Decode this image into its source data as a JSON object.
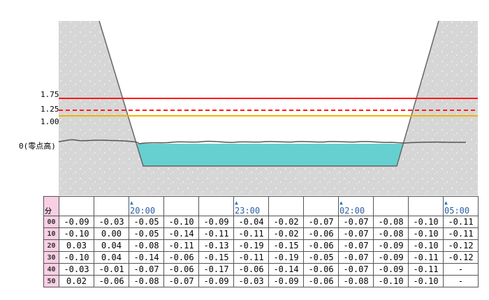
{
  "levels": {
    "l175": "1.75",
    "l125": "1.25",
    "l100": "1.00",
    "zero": "0(零点高)",
    "colors": {
      "red": "#ff1a1a",
      "yellow": "#f0b400",
      "water": "#66d0d0"
    }
  },
  "table": {
    "header_label": "分",
    "time_markers": [
      "",
      "",
      "20:00",
      "",
      "",
      "23:00",
      "",
      "",
      "02:00",
      "",
      "",
      "05:00"
    ],
    "rows": [
      {
        "minute": "00",
        "values": [
          "-0.09",
          "-0.03",
          "-0.05",
          "-0.10",
          "-0.09",
          "-0.04",
          "-0.02",
          "-0.07",
          "-0.07",
          "-0.08",
          "-0.10",
          "-0.11"
        ]
      },
      {
        "minute": "10",
        "values": [
          "-0.10",
          "0.00",
          "-0.05",
          "-0.14",
          "-0.11",
          "-0.11",
          "-0.02",
          "-0.06",
          "-0.07",
          "-0.08",
          "-0.10",
          "-0.11"
        ]
      },
      {
        "minute": "20",
        "values": [
          "0.03",
          "0.04",
          "-0.08",
          "-0.11",
          "-0.13",
          "-0.19",
          "-0.15",
          "-0.06",
          "-0.07",
          "-0.09",
          "-0.10",
          "-0.12"
        ]
      },
      {
        "minute": "30",
        "values": [
          "-0.10",
          "0.04",
          "-0.14",
          "-0.06",
          "-0.15",
          "-0.11",
          "-0.19",
          "-0.05",
          "-0.07",
          "-0.09",
          "-0.11",
          "-0.12"
        ]
      },
      {
        "minute": "40",
        "values": [
          "-0.03",
          "-0.01",
          "-0.07",
          "-0.06",
          "-0.17",
          "-0.06",
          "-0.14",
          "-0.06",
          "-0.07",
          "-0.09",
          "-0.11",
          "-"
        ]
      },
      {
        "minute": "50",
        "values": [
          "0.02",
          "-0.06",
          "-0.08",
          "-0.07",
          "-0.09",
          "-0.03",
          "-0.09",
          "-0.06",
          "-0.08",
          "-0.10",
          "-0.10",
          "-"
        ]
      }
    ]
  }
}
